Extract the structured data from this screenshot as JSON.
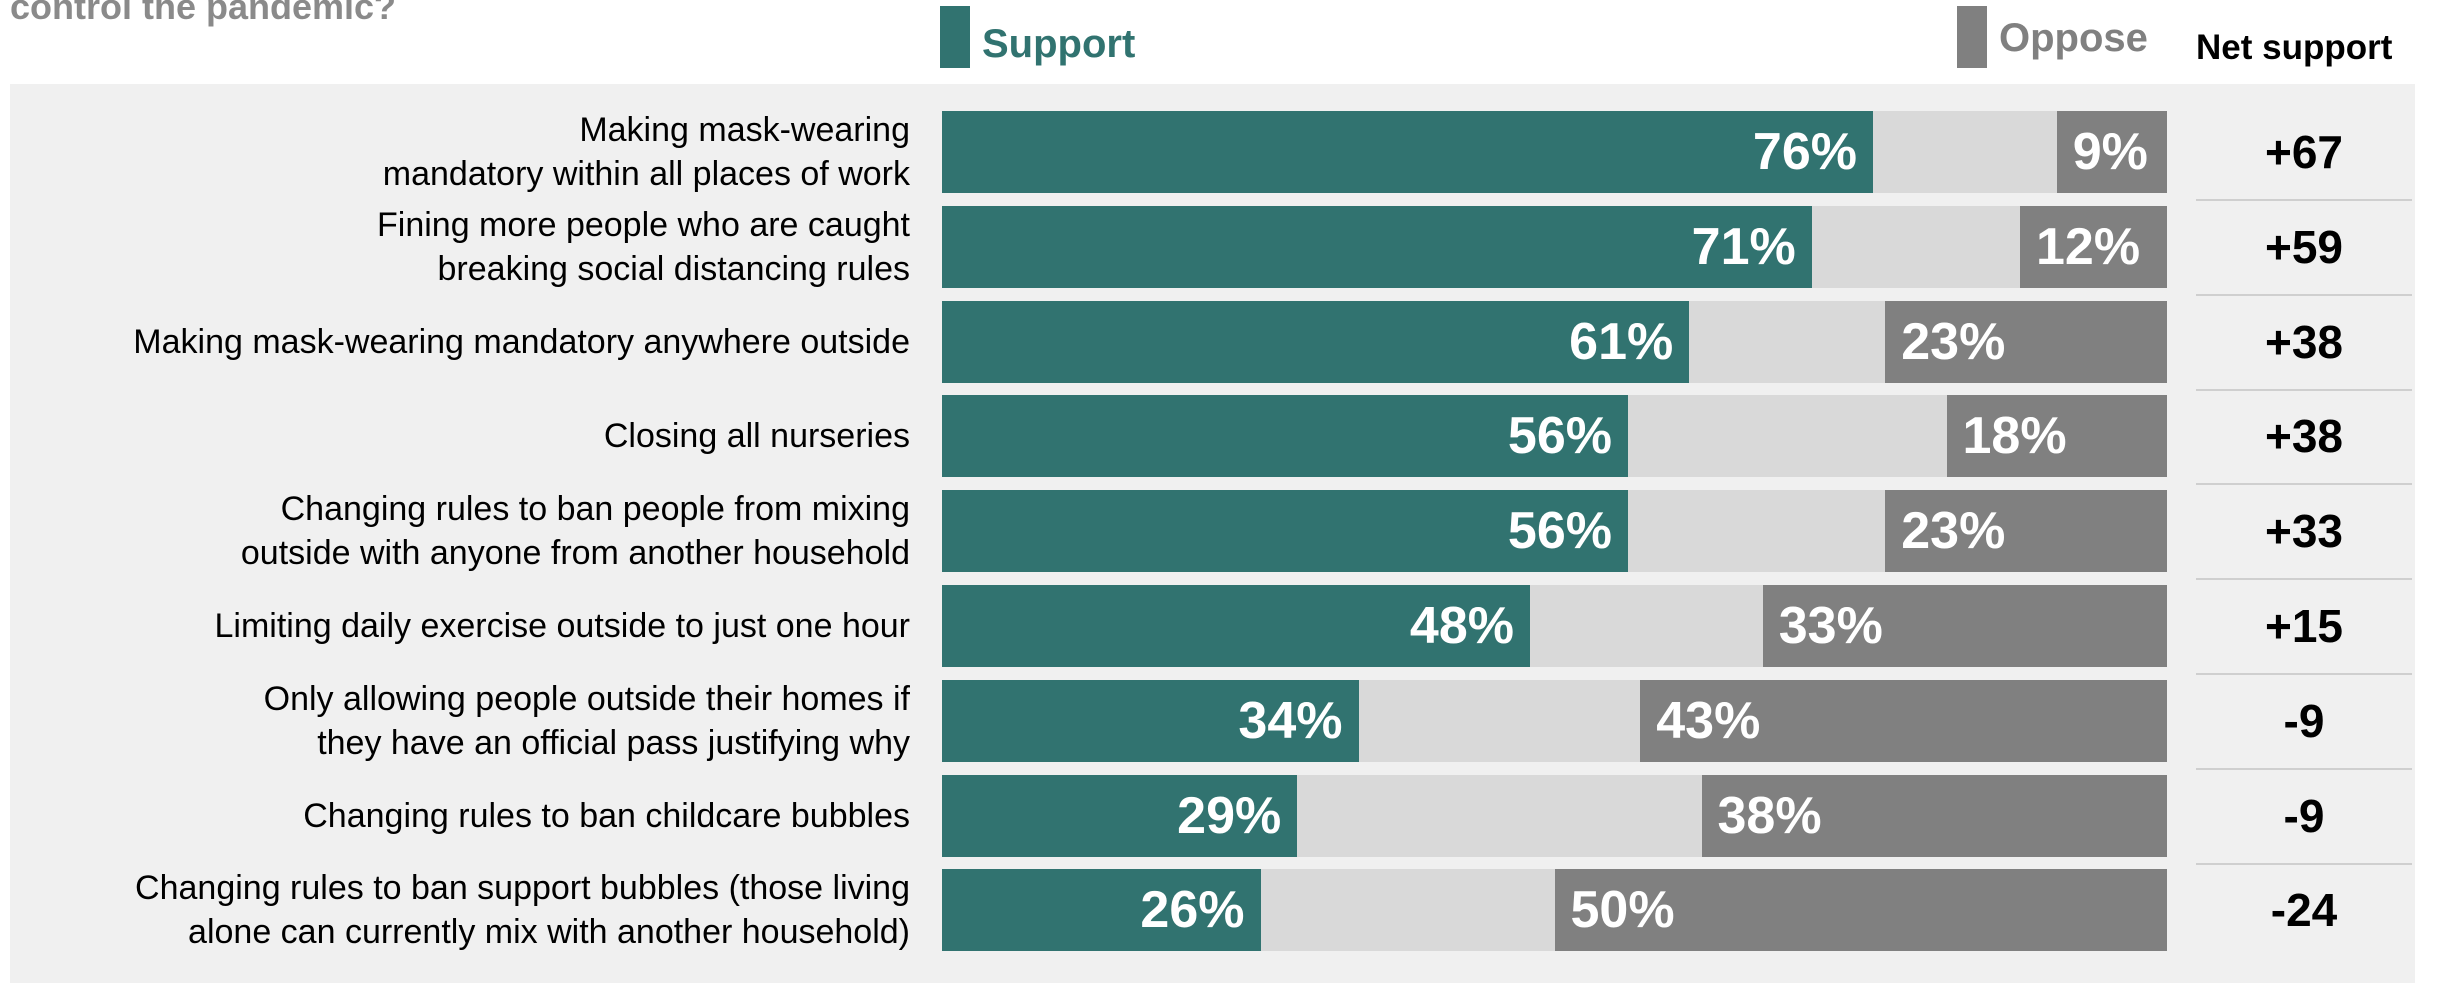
{
  "question": "control the pandemic?",
  "legend": {
    "support": "Support",
    "oppose": "Oppose",
    "net_header": "Net support"
  },
  "colors": {
    "support": "#317370",
    "oppose": "#808080",
    "neutral": "#d9d9d9",
    "panel": "#f0f0f0"
  },
  "chart_data": {
    "type": "bar",
    "stacked": true,
    "orientation": "horizontal",
    "xlim": [
      0,
      100
    ],
    "categories": [
      [
        "Making mask-wearing",
        "mandatory within all places of work"
      ],
      [
        "Fining more people who are caught",
        "breaking social distancing rules"
      ],
      [
        "Making mask-wearing mandatory anywhere outside"
      ],
      [
        "Closing all nurseries"
      ],
      [
        "Changing rules to ban people from mixing",
        "outside with anyone from another household"
      ],
      [
        "Limiting daily exercise outside to just one hour"
      ],
      [
        "Only allowing people outside their homes if",
        "they have an official pass justifying why"
      ],
      [
        "Changing rules to ban childcare bubbles"
      ],
      [
        "Changing rules to ban support bubbles (those living",
        "alone can currently mix with another household)"
      ]
    ],
    "series": [
      {
        "name": "Support",
        "values": [
          76,
          71,
          61,
          56,
          56,
          48,
          34,
          29,
          26
        ],
        "labels": [
          "76%",
          "71%",
          "61%",
          "56%",
          "56%",
          "48%",
          "34%",
          "29%",
          "26%"
        ]
      },
      {
        "name": "Oppose",
        "values": [
          9,
          12,
          23,
          18,
          23,
          33,
          43,
          38,
          50
        ],
        "labels": [
          "9%",
          "12%",
          "23%",
          "18%",
          "23%",
          "33%",
          "43%",
          "38%",
          "50%"
        ]
      }
    ],
    "net_support": [
      "+67",
      "+59",
      "+38",
      "+38",
      "+33",
      "+15",
      "-9",
      "-9",
      "-24"
    ]
  }
}
